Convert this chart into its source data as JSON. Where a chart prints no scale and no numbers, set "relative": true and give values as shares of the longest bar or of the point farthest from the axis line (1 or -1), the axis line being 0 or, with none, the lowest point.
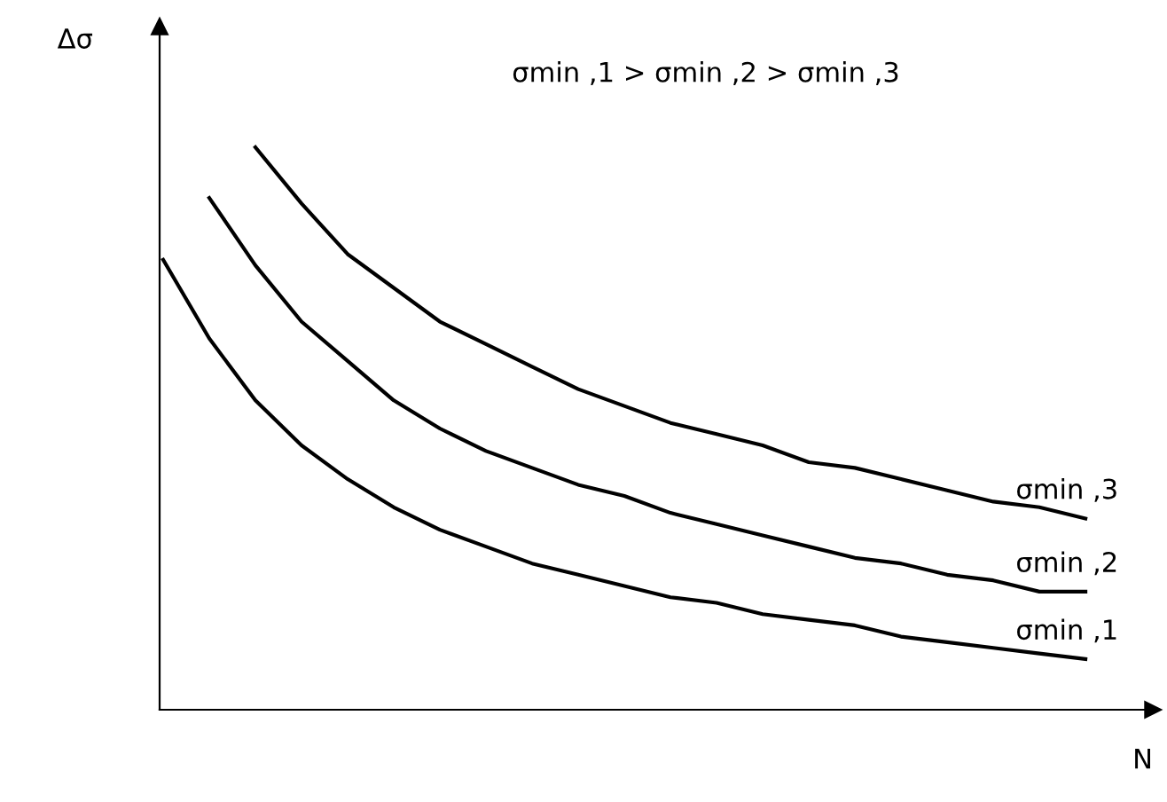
{
  "chart_data": {
    "type": "line",
    "relative": true,
    "xlabel": "N",
    "ylabel": "Δσ",
    "annotations": [
      "σmin ,1 > σmin ,2 > σmin ,3"
    ],
    "categories": [
      null,
      null,
      null,
      null,
      null,
      null,
      null,
      null,
      null,
      null,
      null,
      null,
      null,
      null,
      null,
      null,
      null,
      null,
      null,
      null,
      null
    ],
    "series": [
      {
        "name": "σmin ,1",
        "color": "#000000",
        "values": [
          0.8,
          0.66,
          0.55,
          0.47,
          0.41,
          0.36,
          0.32,
          0.29,
          0.26,
          0.24,
          0.22,
          0.2,
          0.19,
          0.17,
          0.16,
          0.15,
          0.13,
          0.12,
          0.11,
          0.1,
          0.09
        ]
      },
      {
        "name": "σmin ,2",
        "color": "#000000",
        "values": [
          null,
          0.91,
          0.79,
          0.69,
          0.62,
          0.55,
          0.5,
          0.46,
          0.43,
          0.4,
          0.38,
          0.35,
          0.33,
          0.31,
          0.29,
          0.27,
          0.26,
          0.24,
          0.23,
          0.21,
          0.21
        ]
      },
      {
        "name": "σmin ,3",
        "color": "#000000",
        "values": [
          null,
          null,
          1.0,
          0.9,
          0.81,
          0.75,
          0.69,
          0.65,
          0.61,
          0.57,
          0.54,
          0.51,
          0.49,
          0.47,
          0.44,
          0.43,
          0.41,
          0.39,
          0.37,
          0.36,
          0.34
        ]
      }
    ],
    "legend": false,
    "grid": false,
    "marker": "none",
    "line_style": "solid"
  }
}
